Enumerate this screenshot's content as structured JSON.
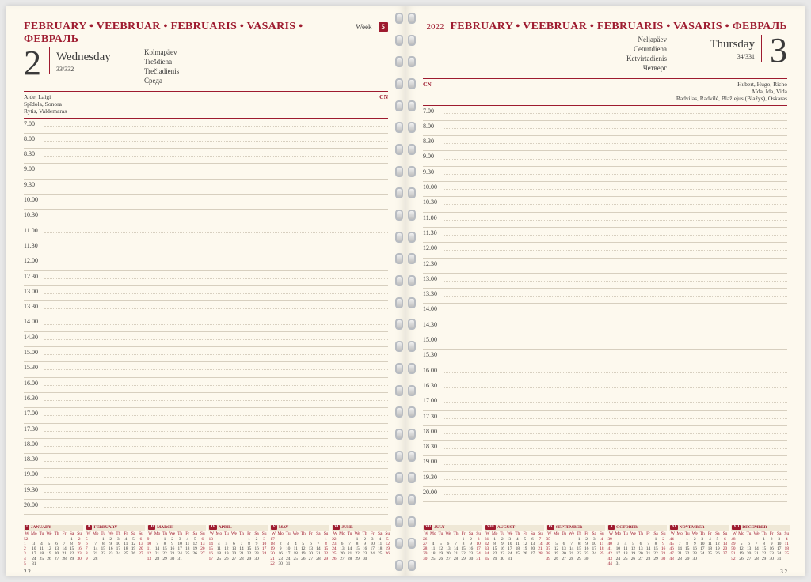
{
  "monthHeader": "FEBRUARY • VEEBRUAR • FEBRUĀRIS • VASARIS • ФЕВРАЛЬ",
  "monthTab": "FEBRUARY",
  "weekLabel": "Week",
  "weekNumber": "5",
  "year": "2022",
  "left": {
    "date": "2",
    "weekday": "Wednesday",
    "dayCount": "33/332",
    "altDays": [
      "Kolmapäev",
      "Trešdiena",
      "Trečiadienis",
      "Среда"
    ],
    "namesLeft": "Aide, Laigi\nSpīdola, Sonora\nRytis, Valdemaras",
    "namesRight": "CN",
    "pageFooter": "2.2"
  },
  "right": {
    "date": "3",
    "weekday": "Thursday",
    "dayCount": "34/331",
    "altDays": [
      "Neljapäev",
      "Ceturtdiena",
      "Ketvirtadienis",
      "Четверг"
    ],
    "namesLeft": "CN",
    "namesRight": "Hubert, Hugo, Richo\nAīda, Ida, Vida\nRadvilas, Radvilė, Blažiejus (Blažys), Oskaras",
    "pageFooter": "3.2"
  },
  "timeSlots": [
    "7.00",
    "8.00",
    "8.30",
    "9.00",
    "9.30",
    "10.00",
    "10.30",
    "11.00",
    "11.30",
    "12.00",
    "12.30",
    "13.00",
    "13.30",
    "14.00",
    "14.30",
    "15.00",
    "15.30",
    "16.00",
    "16.30",
    "17.00",
    "17.30",
    "18.00",
    "18.30",
    "19.00",
    "19.30",
    "20.00"
  ],
  "dow": [
    "Mo",
    "Tu",
    "We",
    "Th",
    "Fr",
    "Sa",
    "Su"
  ],
  "monthsLeft": [
    {
      "n": "I",
      "name": "JANUARY",
      "start": 5,
      "days": 31,
      "wk": 52
    },
    {
      "n": "II",
      "name": "FEBRUARY",
      "start": 1,
      "days": 28,
      "wk": 5
    },
    {
      "n": "III",
      "name": "MARCH",
      "start": 1,
      "days": 31,
      "wk": 9
    },
    {
      "n": "IV",
      "name": "APRIL",
      "start": 4,
      "days": 30,
      "wk": 13
    },
    {
      "n": "V",
      "name": "MAY",
      "start": 6,
      "days": 31,
      "wk": 17
    },
    {
      "n": "VI",
      "name": "JUNE",
      "start": 2,
      "days": 30,
      "wk": 22
    }
  ],
  "monthsRight": [
    {
      "n": "VII",
      "name": "JULY",
      "start": 4,
      "days": 31,
      "wk": 26
    },
    {
      "n": "VIII",
      "name": "AUGUST",
      "start": 0,
      "days": 31,
      "wk": 31
    },
    {
      "n": "IX",
      "name": "SEPTEMBER",
      "start": 3,
      "days": 30,
      "wk": 35
    },
    {
      "n": "X",
      "name": "OCTOBER",
      "start": 5,
      "days": 31,
      "wk": 39
    },
    {
      "n": "XI",
      "name": "NOVEMBER",
      "start": 1,
      "days": 30,
      "wk": 44
    },
    {
      "n": "XII",
      "name": "DECEMBER",
      "start": 3,
      "days": 31,
      "wk": 48
    }
  ],
  "accent": "#9e1b2f",
  "paper": "#fdf9ee",
  "rule": "#d7cfbf"
}
